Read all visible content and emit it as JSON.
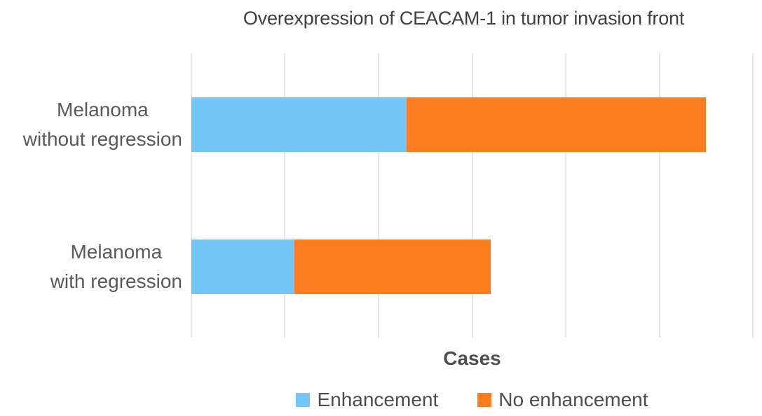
{
  "chart_data": {
    "type": "bar",
    "orientation": "horizontal",
    "stacked": true,
    "title": "Overexpression of CEACAM-1 in tumor invasion front",
    "xlabel": "Cases",
    "categories": [
      "Melanoma\nwithout regression",
      "Melanoma\nwith regression"
    ],
    "series": [
      {
        "name": "Enhancement",
        "color": "#74C6F6",
        "values": [
          23,
          11
        ]
      },
      {
        "name": "No enhancement",
        "color": "#FA7D1E",
        "values": [
          32,
          21
        ]
      }
    ],
    "xlim": [
      0,
      60
    ],
    "x_tick_interval": 10,
    "grid": "vertical-only",
    "legend_position": "bottom",
    "axis_tick_labels_visible": false
  },
  "style": {
    "title_color": "#404040",
    "axis_text_color": "#595959",
    "gridline_color": "#E6E6E6",
    "background": "#FFFFFF"
  }
}
